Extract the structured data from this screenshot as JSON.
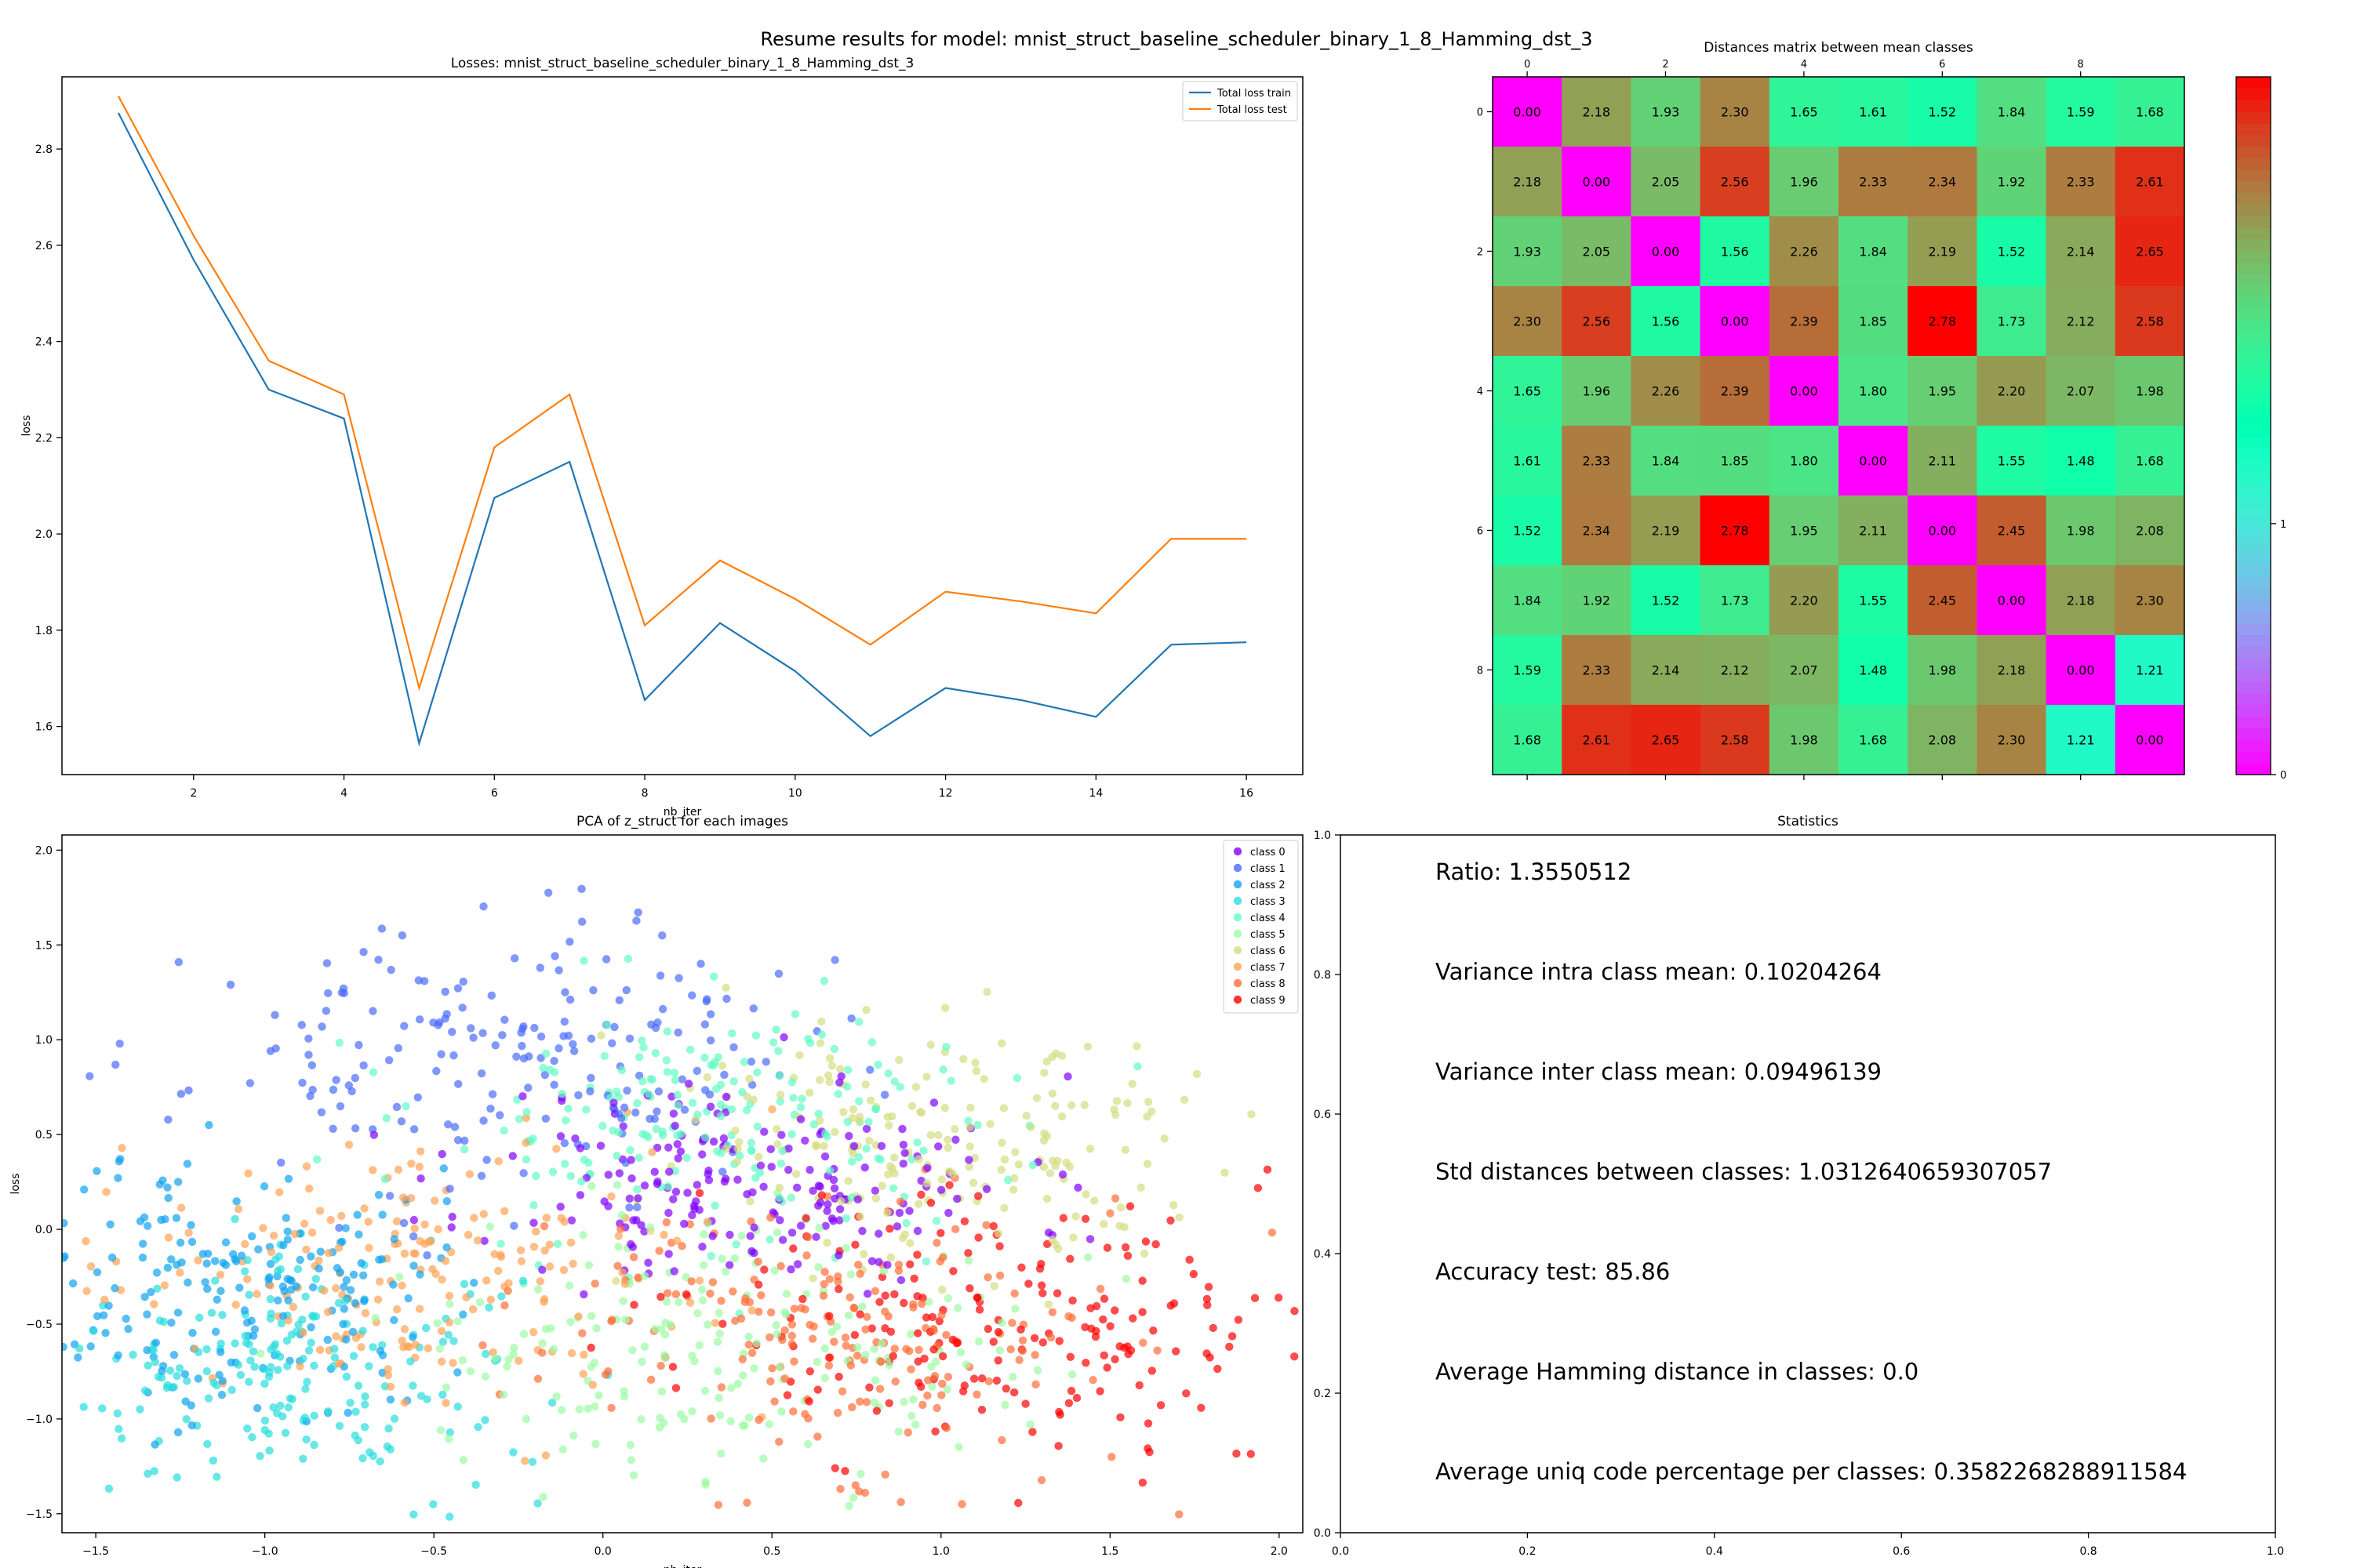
{
  "suptitle": "Resume results for model: mnist_struct_baseline_scheduler_binary_1_8_Hamming_dst_3",
  "chart_data": [
    {
      "type": "line",
      "title": "Losses: mnist_struct_baseline_scheduler_binary_1_8_Hamming_dst_3",
      "xlabel": "nb_iter",
      "ylabel": "loss",
      "xlim": [
        0.25,
        16.75
      ],
      "ylim": [
        1.5,
        2.95
      ],
      "xticks": [
        2,
        4,
        6,
        8,
        10,
        12,
        14,
        16
      ],
      "yticks": [
        1.6,
        1.8,
        2.0,
        2.2,
        2.4,
        2.6,
        2.8
      ],
      "legend_position": "top-right",
      "x": [
        1,
        2,
        3,
        4,
        5,
        6,
        7,
        8,
        9,
        10,
        11,
        12,
        13,
        14,
        15,
        16
      ],
      "series": [
        {
          "name": "Total loss train",
          "color": "#1f77b4",
          "values": [
            2.875,
            2.57,
            2.3,
            2.24,
            1.565,
            2.075,
            2.15,
            1.655,
            1.815,
            1.715,
            1.58,
            1.68,
            1.655,
            1.62,
            1.77,
            1.775
          ]
        },
        {
          "name": "Total loss test",
          "color": "#ff7f0e",
          "values": [
            2.91,
            2.62,
            2.36,
            2.29,
            1.68,
            2.18,
            2.29,
            1.81,
            1.945,
            1.865,
            1.77,
            1.88,
            1.86,
            1.835,
            1.99,
            1.99
          ]
        }
      ]
    },
    {
      "type": "heatmap",
      "title": "Distances matrix between mean classes",
      "colormap": "rainbow",
      "vmin": 0,
      "vmax": 2.78,
      "xticks": [
        0,
        2,
        4,
        6,
        8
      ],
      "yticks": [
        0,
        2,
        4,
        6,
        8
      ],
      "colorbar_ticks": [
        0,
        1
      ],
      "matrix": [
        [
          0.0,
          2.18,
          1.93,
          2.3,
          1.65,
          1.61,
          1.52,
          1.84,
          1.59,
          1.68
        ],
        [
          2.18,
          0.0,
          2.05,
          2.56,
          1.96,
          2.33,
          2.34,
          1.92,
          2.33,
          2.61
        ],
        [
          1.93,
          2.05,
          0.0,
          1.56,
          2.26,
          1.84,
          2.19,
          1.52,
          2.14,
          2.65
        ],
        [
          2.3,
          2.56,
          1.56,
          0.0,
          2.39,
          1.85,
          2.78,
          1.73,
          2.12,
          2.58
        ],
        [
          1.65,
          1.96,
          2.26,
          2.39,
          0.0,
          1.8,
          1.95,
          2.2,
          2.07,
          1.98
        ],
        [
          1.61,
          2.33,
          1.84,
          1.85,
          1.8,
          0.0,
          2.11,
          1.55,
          1.48,
          1.68
        ],
        [
          1.52,
          2.34,
          2.19,
          2.78,
          1.95,
          2.11,
          0.0,
          2.45,
          1.98,
          2.08
        ],
        [
          1.84,
          1.92,
          1.52,
          1.73,
          2.2,
          1.55,
          2.45,
          0.0,
          2.18,
          2.3
        ],
        [
          1.59,
          2.33,
          2.14,
          2.12,
          2.07,
          1.48,
          1.98,
          2.18,
          0.0,
          1.21
        ],
        [
          1.68,
          2.61,
          2.65,
          2.58,
          1.98,
          1.68,
          2.08,
          2.3,
          1.21,
          0.0
        ]
      ]
    },
    {
      "type": "scatter",
      "title": "PCA of z_struct for each images",
      "xlabel": "nb_iter",
      "ylabel": "loss",
      "xlim": [
        -1.6,
        2.07
      ],
      "ylim": [
        -1.6,
        2.08
      ],
      "xticks": [
        -1.5,
        -1.0,
        -0.5,
        0.0,
        0.5,
        1.0,
        1.5,
        2.0
      ],
      "yticks": [
        -1.5,
        -1.0,
        -0.5,
        0.0,
        0.5,
        1.0,
        1.5,
        2.0
      ],
      "legend_position": "top-right",
      "points_per_class": 200,
      "series": [
        {
          "name": "class 0",
          "color": "#8000ff",
          "cx": 0.45,
          "cy": 0.25,
          "sx": 0.4,
          "sy": 0.28,
          "seed": 11
        },
        {
          "name": "class 1",
          "color": "#4a6bfb",
          "cx": -0.3,
          "cy": 0.9,
          "sx": 0.45,
          "sy": 0.35,
          "seed": 23
        },
        {
          "name": "class 2",
          "color": "#10a2f0",
          "cx": -1.1,
          "cy": -0.3,
          "sx": 0.3,
          "sy": 0.35,
          "seed": 37
        },
        {
          "name": "class 3",
          "color": "#2adddd",
          "cx": -0.9,
          "cy": -0.75,
          "sx": 0.35,
          "sy": 0.3,
          "seed": 41
        },
        {
          "name": "class 4",
          "color": "#62fbc4",
          "cx": 0.35,
          "cy": 0.55,
          "sx": 0.45,
          "sy": 0.35,
          "seed": 53
        },
        {
          "name": "class 5",
          "color": "#9cfba4",
          "cx": 0.3,
          "cy": -0.7,
          "sx": 0.45,
          "sy": 0.35,
          "seed": 67
        },
        {
          "name": "class 6",
          "color": "#d4dd80",
          "cx": 1.0,
          "cy": 0.45,
          "sx": 0.45,
          "sy": 0.35,
          "seed": 71
        },
        {
          "name": "class 7",
          "color": "#ffa256",
          "cx": -0.6,
          "cy": -0.25,
          "sx": 0.45,
          "sy": 0.35,
          "seed": 83
        },
        {
          "name": "class 8",
          "color": "#ff6d38",
          "cx": 0.6,
          "cy": -0.55,
          "sx": 0.45,
          "sy": 0.4,
          "seed": 97
        },
        {
          "name": "class 9",
          "color": "#ff0000",
          "cx": 1.2,
          "cy": -0.5,
          "sx": 0.45,
          "sy": 0.35,
          "seed": 101
        }
      ]
    },
    {
      "type": "table",
      "title": "Statistics",
      "xlim": [
        0.0,
        1.0
      ],
      "ylim": [
        0.0,
        1.0
      ],
      "xticks": [
        0.0,
        0.2,
        0.4,
        0.6,
        0.8,
        1.0
      ],
      "yticks": [
        0.0,
        0.2,
        0.4,
        0.6,
        0.8,
        1.0
      ],
      "lines": [
        "Ratio: 1.3550512",
        "Variance intra class mean: 0.10204264",
        "Variance inter class mean: 0.09496139",
        "Std distances between classes: 1.0312640659307057",
        "Accuracy test: 85.86",
        "Average Hamming distance in classes: 0.0",
        "Average uniq code percentage per classes: 0.3582268288911584"
      ]
    }
  ]
}
